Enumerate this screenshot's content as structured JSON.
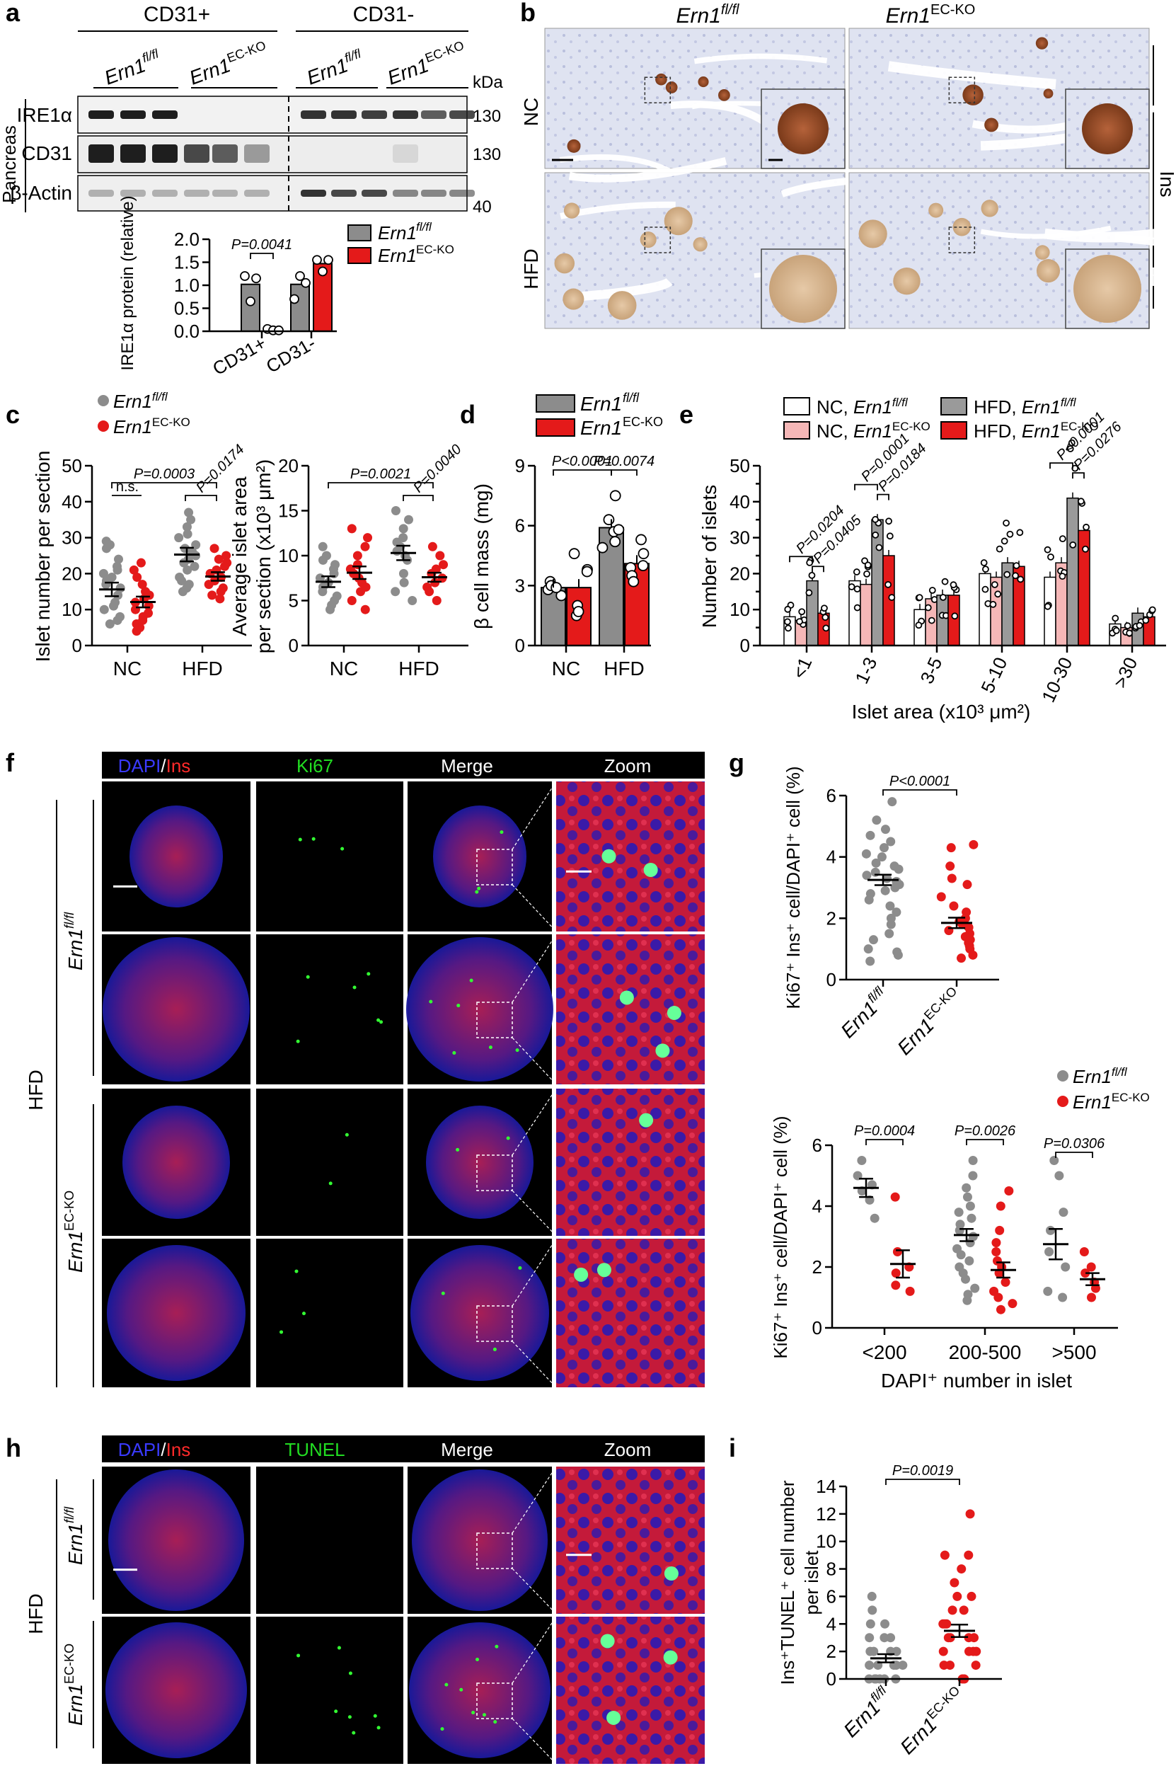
{
  "panels": {
    "a": "a",
    "b": "b",
    "c": "c",
    "d": "d",
    "e": "e",
    "f": "f",
    "g": "g",
    "h": "h",
    "i": "i"
  },
  "genotypes": {
    "fl_base": "Ern1",
    "fl_sup": "fl/fl",
    "ko_base": "Ern1",
    "ko_sup": "EC-KO"
  },
  "colors": {
    "fl": "#8c8c8c",
    "ko": "#e41a1a",
    "nc_fl": "#ffffff",
    "nc_ko": "#f5b7b7",
    "hfd_fl": "#9a9a9a",
    "hfd_ko": "#e41a1a"
  },
  "panel_a": {
    "cd31_pos": "CD31+",
    "cd31_neg": "CD31-",
    "kda": "kDa",
    "tissue": "Pancreas",
    "blots": [
      {
        "label": "IRE1α",
        "mw": "130"
      },
      {
        "label": "CD31",
        "mw": "130"
      },
      {
        "label": "β-Actin",
        "mw": "40"
      }
    ]
  },
  "panel_b": {
    "row_nc": "NC",
    "row_hfd": "HFD",
    "stain": "Ins"
  },
  "panel_f": {
    "headers": [
      {
        "a": "DAPI",
        "sep": "/",
        "b": "Ins"
      },
      "Ki67",
      "Merge",
      "Zoom"
    ],
    "condition": "HFD"
  },
  "panel_h": {
    "headers": [
      {
        "a": "DAPI",
        "sep": "/",
        "b": "Ins"
      },
      "TUNEL",
      "Merge",
      "Zoom"
    ],
    "condition": "HFD"
  },
  "chart_data": [
    {
      "id": "a",
      "type": "bar",
      "ylabel": "IRE1α protein (relative)",
      "ylim": [
        0,
        2.0
      ],
      "yticks": [
        "0.0",
        "0.5",
        "1.0",
        "1.5",
        "2.0"
      ],
      "categories": [
        "CD31+",
        "CD31-"
      ],
      "series": [
        {
          "name": "Ern1 fl/fl",
          "values": [
            1.02,
            1.02
          ],
          "points": [
            [
              1.2,
              0.65,
              1.15
            ],
            [
              0.7,
              1.2,
              1.05
            ]
          ]
        },
        {
          "name": "Ern1 EC-KO",
          "values": [
            0.03,
            1.47
          ],
          "points": [
            [
              0.05,
              0.02,
              0.02
            ],
            [
              1.55,
              1.3,
              1.55
            ]
          ]
        }
      ],
      "legend": [
        "Ern1fl/fl",
        "Ern1EC-KO"
      ],
      "annotations": [
        {
          "text": "P=0.0041",
          "between": "CD31+"
        }
      ]
    },
    {
      "id": "c1",
      "type": "scatter",
      "ylabel": "Islet number per section",
      "ylim": [
        0,
        50
      ],
      "yticks": [
        "0",
        "10",
        "20",
        "30",
        "40",
        "50"
      ],
      "categories": [
        "NC",
        "HFD"
      ],
      "groups": [
        {
          "group": "NC",
          "genotype": "fl",
          "mean": 15.6,
          "sem": 1.9,
          "points": [
            29,
            28,
            27,
            24,
            22,
            21,
            20,
            19,
            18,
            17,
            16,
            14,
            12,
            11,
            10,
            8,
            7,
            6
          ]
        },
        {
          "group": "NC",
          "genotype": "ko",
          "mean": 12.1,
          "sem": 1.5,
          "points": [
            23,
            21,
            19,
            17,
            15,
            14,
            13,
            12,
            11,
            10,
            9,
            8,
            7,
            6,
            5,
            4
          ]
        },
        {
          "group": "HFD",
          "genotype": "fl",
          "mean": 25.3,
          "sem": 1.9,
          "points": [
            37,
            35,
            33,
            31,
            30,
            28,
            27,
            26,
            25,
            24,
            23,
            22,
            21,
            19,
            18,
            17,
            16,
            15
          ]
        },
        {
          "group": "HFD",
          "genotype": "ko",
          "mean": 19.2,
          "sem": 1.2,
          "points": [
            27,
            25,
            24,
            23,
            22,
            21,
            20,
            19,
            18,
            17,
            16,
            15,
            14,
            13
          ]
        }
      ],
      "annotations": [
        "P=0.0003",
        "P=0.0174",
        "n.s."
      ]
    },
    {
      "id": "c2",
      "type": "scatter",
      "ylabel": "Average islet area per section (x10³ μm²)",
      "ylim": [
        0,
        20
      ],
      "yticks": [
        "0",
        "5",
        "10",
        "15",
        "20"
      ],
      "categories": [
        "NC",
        "HFD"
      ],
      "groups": [
        {
          "group": "NC",
          "genotype": "fl",
          "mean": 7.1,
          "sem": 0.6,
          "points": [
            11,
            10,
            9.5,
            9,
            8.5,
            8,
            7.5,
            7,
            6.5,
            6,
            5.5,
            5,
            4.5,
            4
          ]
        },
        {
          "group": "NC",
          "genotype": "ko",
          "mean": 8.1,
          "sem": 0.7,
          "points": [
            13,
            12,
            11,
            10,
            9,
            8.5,
            8,
            7.5,
            7,
            6.5,
            6,
            5,
            4
          ]
        },
        {
          "group": "HFD",
          "genotype": "fl",
          "mean": 10.3,
          "sem": 0.8,
          "points": [
            15,
            14,
            13,
            12,
            11.5,
            11,
            10.5,
            10,
            9.5,
            8,
            7,
            6,
            5
          ]
        },
        {
          "group": "HFD",
          "genotype": "ko",
          "mean": 7.6,
          "sem": 0.5,
          "points": [
            11,
            10,
            9,
            8.5,
            8,
            7.5,
            7,
            6.5,
            6,
            5
          ]
        }
      ],
      "annotations": [
        "P=0.0021",
        "P=0.0040"
      ]
    },
    {
      "id": "d",
      "type": "bar",
      "ylabel": "β cell mass (mg)",
      "ylim": [
        0,
        9
      ],
      "yticks": [
        "0",
        "3",
        "6",
        "9"
      ],
      "categories": [
        "NC",
        "HFD"
      ],
      "series": [
        {
          "name": "Ern1 fl/fl",
          "values": [
            2.9,
            5.9
          ],
          "points": [
            [
              3.2,
              2.8,
              2.5,
              3.0,
              2.9
            ],
            [
              7.5,
              6.3,
              5.7,
              5.2,
              4.9,
              5.8
            ]
          ]
        },
        {
          "name": "Ern1 EC-KO",
          "values": [
            2.9,
            4.1
          ],
          "points": [
            [
              4.6,
              3.8,
              2.0,
              1.5,
              1.7,
              3.7
            ],
            [
              5.3,
              4.6,
              3.9,
              3.5,
              3.2,
              4.0
            ]
          ]
        }
      ],
      "legend": [
        "Ern1fl/fl",
        "Ern1EC-KO"
      ],
      "annotations": [
        "P<0.0001",
        "P=0.0074"
      ]
    },
    {
      "id": "e",
      "type": "bar",
      "ylabel": "Number of islets",
      "xlabel": "Islet area (x10³ μm²)",
      "ylim": [
        0,
        50
      ],
      "yticks": [
        "0",
        "5",
        "10",
        "15",
        "20",
        "25",
        "30",
        "35",
        "40",
        "45",
        "50"
      ],
      "categories": [
        "<1",
        "1-3",
        "3-5",
        "5-10",
        "10-30",
        ">30"
      ],
      "series": [
        {
          "name": "NC, Ern1 fl/fl",
          "values": [
            8,
            18,
            10,
            20,
            19,
            6
          ]
        },
        {
          "name": "NC, Ern1 EC-KO",
          "values": [
            7,
            17,
            13,
            19,
            23,
            5
          ]
        },
        {
          "name": "HFD, Ern1 fl/fl",
          "values": [
            18,
            35,
            14,
            23,
            41,
            9
          ]
        },
        {
          "name": "HFD, Ern1 EC-KO",
          "values": [
            9,
            25,
            14,
            22,
            32,
            8
          ]
        }
      ],
      "legend": [
        "NC, Ern1fl/fl",
        "NC, Ern1EC-KO",
        "HFD, Ern1fl/fl",
        "HFD, Ern1EC-KO"
      ],
      "annotations": [
        "P=0.0204",
        "P=0.0405",
        "P=0.0001",
        "P=0.0184",
        "P<0.0001",
        "P=0.0276"
      ]
    },
    {
      "id": "g1",
      "type": "scatter",
      "ylabel": "Ki67⁺ Ins⁺ cell/DAPI⁺ cell (%)",
      "ylim": [
        0,
        6
      ],
      "yticks": [
        "0",
        "2",
        "4",
        "6"
      ],
      "categories": [
        "Ern1fl/fl",
        "Ern1EC-KO"
      ],
      "groups": [
        {
          "group": "fl",
          "mean": 3.25,
          "sem": 0.17,
          "points": [
            5.8,
            5.2,
            4.9,
            4.7,
            4.5,
            4.3,
            4.1,
            4.0,
            3.8,
            3.7,
            3.6,
            3.5,
            3.4,
            3.3,
            3.2,
            3.1,
            3.0,
            2.9,
            2.8,
            2.6,
            2.4,
            2.2,
            2.0,
            1.8,
            1.5,
            1.3,
            1.0,
            0.9,
            0.8,
            0.6
          ]
        },
        {
          "group": "ko",
          "mean": 1.85,
          "sem": 0.17,
          "points": [
            4.4,
            4.3,
            3.7,
            3.3,
            3.1,
            2.7,
            2.4,
            2.2,
            2.0,
            1.9,
            1.8,
            1.7,
            1.6,
            1.5,
            1.4,
            1.3,
            1.2,
            1.1,
            1.0,
            0.8,
            0.7
          ]
        }
      ],
      "annotations": [
        "P<0.0001"
      ]
    },
    {
      "id": "g2",
      "type": "scatter",
      "ylabel": "Ki67⁺ Ins⁺ cell/DAPI⁺ cell (%)",
      "xlabel": "DAPI⁺ number in islet",
      "ylim": [
        0,
        6
      ],
      "yticks": [
        "0",
        "2",
        "4",
        "6"
      ],
      "categories": [
        "<200",
        "200-500",
        ">500"
      ],
      "groups": [
        {
          "group": "<200",
          "genotype": "fl",
          "mean": 4.6,
          "sem": 0.3,
          "points": [
            5.5,
            5.0,
            4.7,
            4.5,
            4.2,
            3.6
          ]
        },
        {
          "group": "<200",
          "genotype": "ko",
          "mean": 2.1,
          "sem": 0.45,
          "points": [
            4.3,
            2.5,
            2.0,
            1.8,
            1.4,
            1.2
          ]
        },
        {
          "group": "200-500",
          "genotype": "fl",
          "mean": 3.05,
          "sem": 0.2,
          "points": [
            5.5,
            5.0,
            4.6,
            4.3,
            4.0,
            3.8,
            3.6,
            3.4,
            3.2,
            3.0,
            2.8,
            2.6,
            2.4,
            2.2,
            2.0,
            1.8,
            1.6,
            1.3,
            1.1,
            0.9
          ]
        },
        {
          "group": "200-500",
          "genotype": "ko",
          "mean": 1.9,
          "sem": 0.25,
          "points": [
            4.5,
            4.0,
            3.2,
            2.8,
            2.5,
            2.2,
            2.0,
            1.8,
            1.5,
            1.2,
            1.0,
            0.8,
            0.6
          ]
        },
        {
          "group": ">500",
          "genotype": "fl",
          "mean": 2.75,
          "sem": 0.5,
          "points": [
            5.5,
            5.0,
            3.8,
            3.2,
            2.5,
            2.0,
            1.2,
            1.0
          ]
        },
        {
          "group": ">500",
          "genotype": "ko",
          "mean": 1.6,
          "sem": 0.2,
          "points": [
            2.5,
            2.0,
            1.8,
            1.5,
            1.3,
            1.0
          ]
        }
      ],
      "annotations": [
        "P=0.0004",
        "P=0.0026",
        "P=0.0306"
      ]
    },
    {
      "id": "i",
      "type": "scatter",
      "ylabel": "Ins⁺TUNEL⁺ cell number per islet",
      "ylim": [
        0,
        14
      ],
      "yticks": [
        "0",
        "2",
        "4",
        "6",
        "8",
        "10",
        "12",
        "14"
      ],
      "categories": [
        "Ern1fl/fl",
        "Ern1EC-KO"
      ],
      "groups": [
        {
          "group": "fl",
          "mean": 1.5,
          "sem": 0.3,
          "points": [
            6,
            5,
            4,
            4,
            3,
            3,
            3,
            2,
            2,
            2,
            2,
            1,
            1,
            1,
            1,
            1,
            0,
            0,
            0,
            0,
            0,
            0
          ]
        },
        {
          "group": "ko",
          "mean": 3.5,
          "sem": 0.45,
          "points": [
            12,
            9,
            9,
            8,
            7,
            6,
            6,
            5,
            5,
            4,
            4,
            4,
            3,
            3,
            3,
            3,
            2,
            2,
            2,
            2,
            1,
            1,
            1,
            0,
            0
          ]
        }
      ],
      "annotations": [
        "P=0.0019"
      ]
    }
  ]
}
